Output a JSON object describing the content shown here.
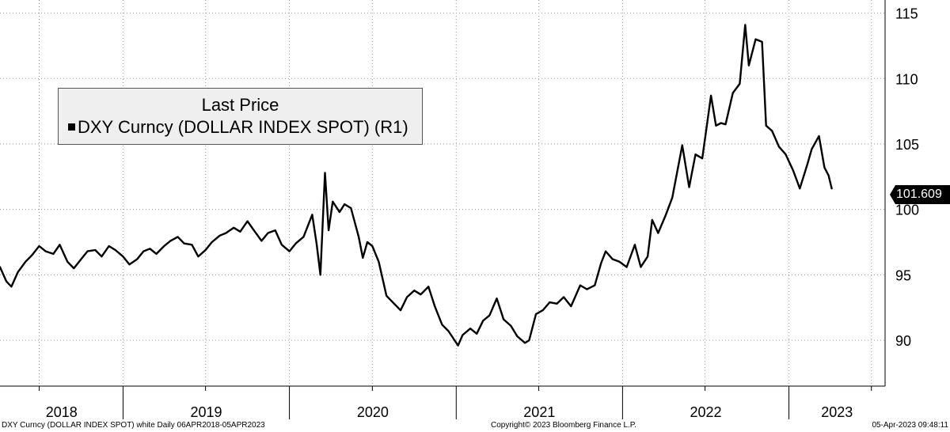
{
  "chart_data": {
    "type": "line",
    "title": "",
    "xlabel": "",
    "ylabel": "",
    "x_tick_labels": [
      "2018",
      "2019",
      "2020",
      "2021",
      "2022",
      "2023"
    ],
    "y_ticks": [
      90,
      95,
      100,
      105,
      110,
      115
    ],
    "ylim": [
      86.5,
      116
    ],
    "xlim": [
      "2018-04-06",
      "2023-07-31"
    ],
    "grid": true,
    "legend": {
      "placement": "top-left",
      "title": "Last Price",
      "entries": [
        "DXY Curncy (DOLLAR INDEX SPOT) (R1)"
      ]
    },
    "last_value_label": "101.609",
    "series": [
      {
        "name": "DXY Curncy (DOLLAR INDEX SPOT) (R1)",
        "color": "#000000",
        "points": [
          [
            "2018-04-06",
            95.6
          ],
          [
            "2018-04-20",
            94.5
          ],
          [
            "2018-05-01",
            94.1
          ],
          [
            "2018-05-15",
            95.2
          ],
          [
            "2018-06-01",
            96.0
          ],
          [
            "2018-06-15",
            96.5
          ],
          [
            "2018-07-01",
            97.2
          ],
          [
            "2018-07-15",
            96.8
          ],
          [
            "2018-08-01",
            96.6
          ],
          [
            "2018-08-15",
            97.3
          ],
          [
            "2018-09-01",
            96.0
          ],
          [
            "2018-09-15",
            95.5
          ],
          [
            "2018-10-01",
            96.2
          ],
          [
            "2018-10-15",
            96.8
          ],
          [
            "2018-11-01",
            96.9
          ],
          [
            "2018-11-15",
            96.4
          ],
          [
            "2018-12-01",
            97.2
          ],
          [
            "2018-12-15",
            96.9
          ],
          [
            "2019-01-01",
            96.4
          ],
          [
            "2019-01-15",
            95.8
          ],
          [
            "2019-02-01",
            96.2
          ],
          [
            "2019-02-15",
            96.8
          ],
          [
            "2019-03-01",
            97.0
          ],
          [
            "2019-03-15",
            96.6
          ],
          [
            "2019-04-01",
            97.2
          ],
          [
            "2019-04-15",
            97.6
          ],
          [
            "2019-05-01",
            97.9
          ],
          [
            "2019-05-15",
            97.4
          ],
          [
            "2019-06-01",
            97.3
          ],
          [
            "2019-06-15",
            96.4
          ],
          [
            "2019-07-01",
            96.9
          ],
          [
            "2019-07-15",
            97.5
          ],
          [
            "2019-08-01",
            98.0
          ],
          [
            "2019-08-15",
            98.2
          ],
          [
            "2019-09-01",
            98.6
          ],
          [
            "2019-09-15",
            98.3
          ],
          [
            "2019-10-01",
            99.1
          ],
          [
            "2019-10-15",
            98.4
          ],
          [
            "2019-11-01",
            97.6
          ],
          [
            "2019-11-15",
            98.2
          ],
          [
            "2019-12-01",
            98.4
          ],
          [
            "2019-12-15",
            97.3
          ],
          [
            "2020-01-01",
            96.8
          ],
          [
            "2020-01-15",
            97.4
          ],
          [
            "2020-02-01",
            97.9
          ],
          [
            "2020-02-20",
            99.6
          ],
          [
            "2020-03-01",
            97.3
          ],
          [
            "2020-03-09",
            95.0
          ],
          [
            "2020-03-19",
            102.8
          ],
          [
            "2020-03-27",
            98.4
          ],
          [
            "2020-04-05",
            100.6
          ],
          [
            "2020-04-20",
            99.8
          ],
          [
            "2020-05-01",
            100.4
          ],
          [
            "2020-05-15",
            100.1
          ],
          [
            "2020-06-01",
            97.9
          ],
          [
            "2020-06-10",
            96.3
          ],
          [
            "2020-06-20",
            97.5
          ],
          [
            "2020-07-01",
            97.2
          ],
          [
            "2020-07-15",
            96.0
          ],
          [
            "2020-08-01",
            93.4
          ],
          [
            "2020-08-15",
            92.9
          ],
          [
            "2020-09-01",
            92.3
          ],
          [
            "2020-09-15",
            93.3
          ],
          [
            "2020-10-01",
            93.8
          ],
          [
            "2020-10-15",
            93.5
          ],
          [
            "2020-11-01",
            94.1
          ],
          [
            "2020-11-15",
            92.6
          ],
          [
            "2020-12-01",
            91.2
          ],
          [
            "2020-12-15",
            90.7
          ],
          [
            "2021-01-05",
            89.6
          ],
          [
            "2021-01-15",
            90.4
          ],
          [
            "2021-02-01",
            90.9
          ],
          [
            "2021-02-15",
            90.5
          ],
          [
            "2021-03-01",
            91.5
          ],
          [
            "2021-03-15",
            91.9
          ],
          [
            "2021-03-31",
            93.2
          ],
          [
            "2021-04-15",
            91.6
          ],
          [
            "2021-05-01",
            91.1
          ],
          [
            "2021-05-15",
            90.3
          ],
          [
            "2021-06-01",
            89.8
          ],
          [
            "2021-06-10",
            90.0
          ],
          [
            "2021-06-25",
            92.0
          ],
          [
            "2021-07-10",
            92.3
          ],
          [
            "2021-07-25",
            92.9
          ],
          [
            "2021-08-10",
            92.8
          ],
          [
            "2021-08-25",
            93.3
          ],
          [
            "2021-09-10",
            92.6
          ],
          [
            "2021-09-30",
            94.2
          ],
          [
            "2021-10-15",
            93.9
          ],
          [
            "2021-11-01",
            94.2
          ],
          [
            "2021-11-15",
            95.9
          ],
          [
            "2021-11-25",
            96.8
          ],
          [
            "2021-12-10",
            96.2
          ],
          [
            "2021-12-25",
            96.0
          ],
          [
            "2022-01-10",
            95.6
          ],
          [
            "2022-01-28",
            97.3
          ],
          [
            "2022-02-10",
            95.6
          ],
          [
            "2022-02-25",
            96.4
          ],
          [
            "2022-03-07",
            99.2
          ],
          [
            "2022-03-20",
            98.2
          ],
          [
            "2022-04-05",
            99.5
          ],
          [
            "2022-04-20",
            100.9
          ],
          [
            "2022-05-12",
            104.9
          ],
          [
            "2022-05-27",
            101.7
          ],
          [
            "2022-06-10",
            104.2
          ],
          [
            "2022-06-25",
            103.9
          ],
          [
            "2022-07-14",
            108.7
          ],
          [
            "2022-07-25",
            106.4
          ],
          [
            "2022-08-05",
            106.6
          ],
          [
            "2022-08-15",
            106.5
          ],
          [
            "2022-08-31",
            108.9
          ],
          [
            "2022-09-15",
            109.6
          ],
          [
            "2022-09-27",
            114.1
          ],
          [
            "2022-10-05",
            111.0
          ],
          [
            "2022-10-20",
            113.0
          ],
          [
            "2022-11-03",
            112.8
          ],
          [
            "2022-11-12",
            106.4
          ],
          [
            "2022-11-25",
            106.0
          ],
          [
            "2022-12-10",
            104.8
          ],
          [
            "2022-12-25",
            104.2
          ],
          [
            "2023-01-10",
            103.0
          ],
          [
            "2023-01-25",
            101.6
          ],
          [
            "2023-02-10",
            103.4
          ],
          [
            "2023-02-20",
            104.6
          ],
          [
            "2023-03-08",
            105.6
          ],
          [
            "2023-03-20",
            103.2
          ],
          [
            "2023-03-29",
            102.6
          ],
          [
            "2023-04-05",
            101.6
          ]
        ]
      }
    ]
  },
  "footer": {
    "left": "DXY Curncy (DOLLAR INDEX SPOT) white  Daily 06APR2018-05APR2023",
    "center": "Copyright© 2023 Bloomberg Finance L.P.",
    "right": "05-Apr-2023 09:48:11"
  }
}
